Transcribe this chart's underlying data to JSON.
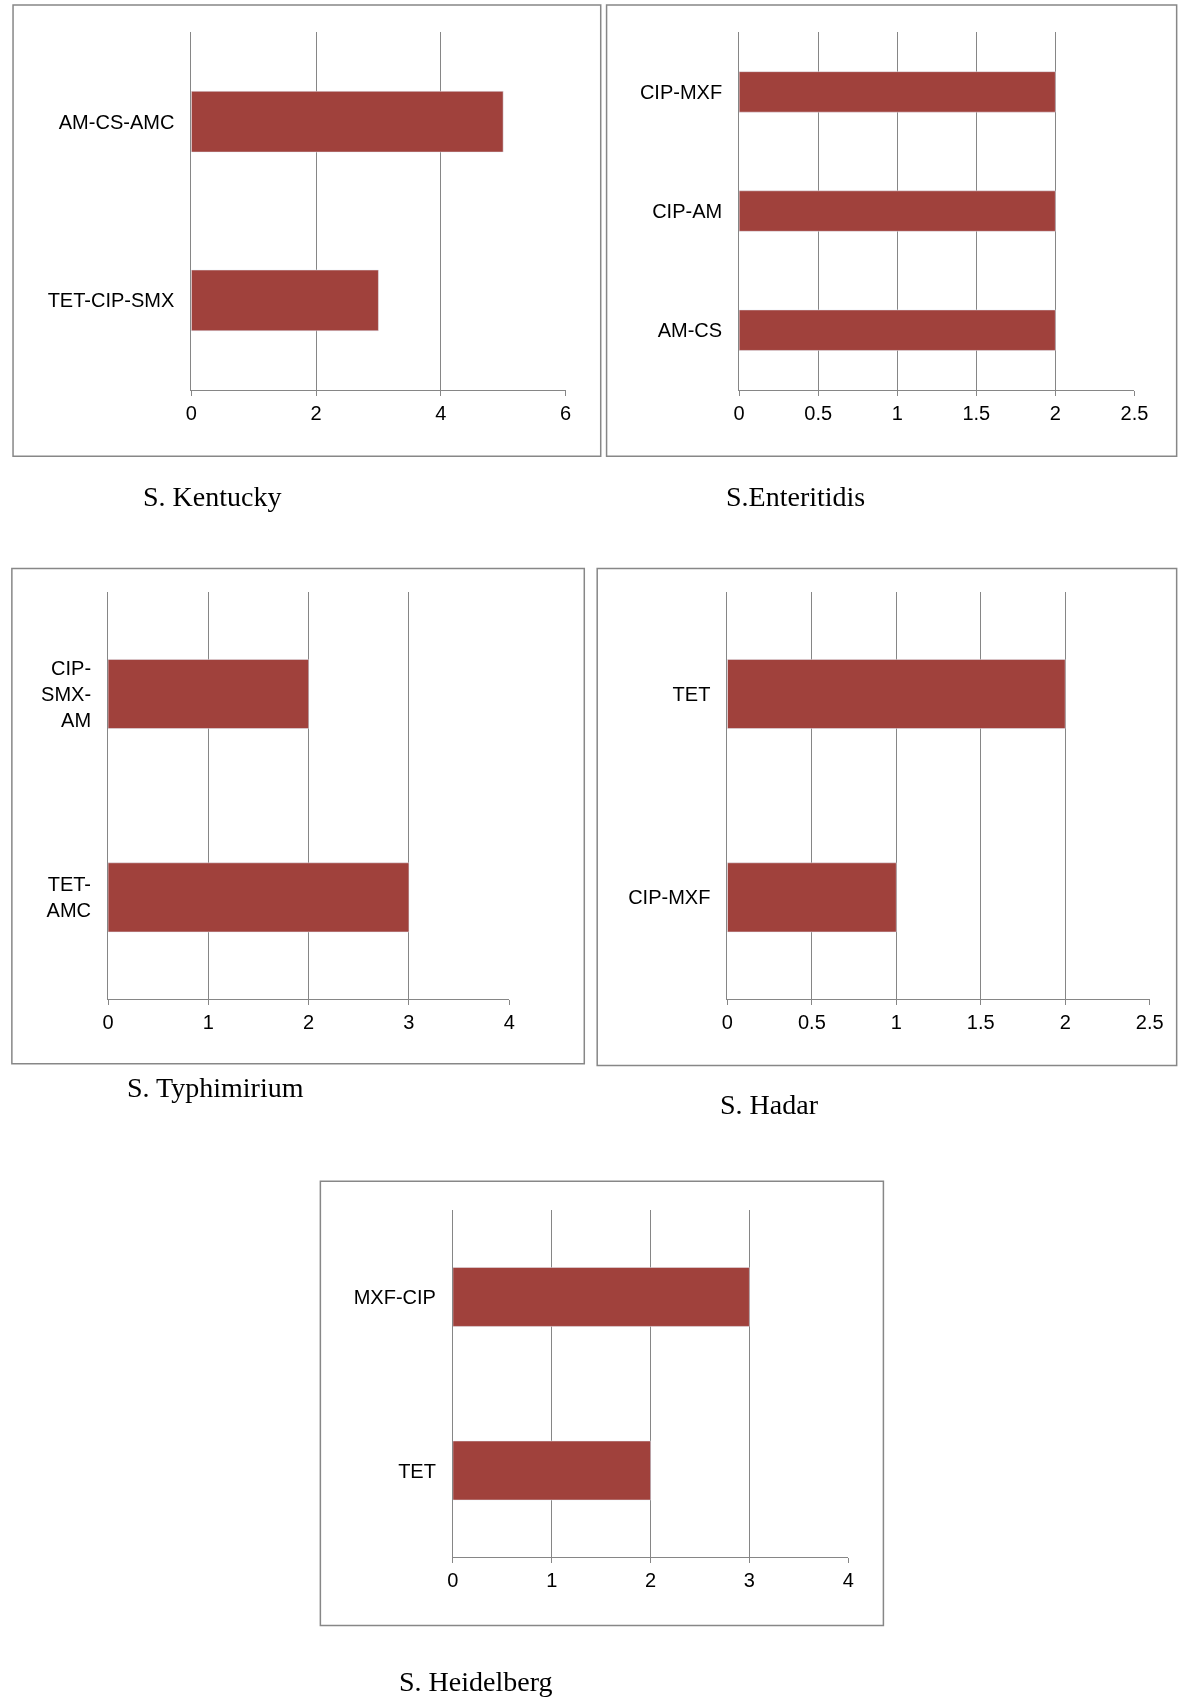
{
  "chart_data": [
    {
      "type": "bar",
      "orientation": "horizontal",
      "title": "S. Kentucky",
      "categories": [
        "AM-CS-AMC",
        "TET-CIP-SMX"
      ],
      "values": [
        5,
        3
      ],
      "color": "#a0413c",
      "xlim": [
        0,
        6
      ],
      "xticks": [
        0,
        2,
        4,
        6
      ],
      "grid": "x",
      "legend": false
    },
    {
      "type": "bar",
      "orientation": "horizontal",
      "title": "S.Enteritidis",
      "categories": [
        "CIP-MXF",
        "CIP-AM",
        "AM-CS"
      ],
      "values": [
        2,
        2,
        2
      ],
      "color": "#a0413c",
      "xlim": [
        0,
        2.5
      ],
      "xticks": [
        0,
        0.5,
        1,
        1.5,
        2,
        2.5
      ],
      "grid": "x",
      "legend": false
    },
    {
      "type": "bar",
      "orientation": "horizontal",
      "title": "S. Typhimirium",
      "categories": [
        "CIP-\nSMX-\nAM",
        "TET-\nAMC"
      ],
      "values": [
        2,
        3
      ],
      "color": "#a0413c",
      "xlim": [
        0,
        4
      ],
      "xticks": [
        0,
        1,
        2,
        3,
        4
      ],
      "grid": "x",
      "legend": false
    },
    {
      "type": "bar",
      "orientation": "horizontal",
      "title": "S. Hadar",
      "categories": [
        "TET",
        "CIP-MXF"
      ],
      "values": [
        2,
        1
      ],
      "color": "#a0413c",
      "xlim": [
        0,
        2.5
      ],
      "xticks": [
        0,
        0.5,
        1,
        1.5,
        2,
        2.5
      ],
      "grid": "x",
      "legend": false
    },
    {
      "type": "bar",
      "orientation": "horizontal",
      "title": "S. Heidelberg",
      "categories": [
        "MXF-CIP",
        "TET"
      ],
      "values": [
        3,
        2
      ],
      "color": "#a0413c",
      "xlim": [
        0,
        4
      ],
      "xticks": [
        0,
        1,
        2,
        3,
        4
      ],
      "grid": "x",
      "legend": false
    }
  ]
}
